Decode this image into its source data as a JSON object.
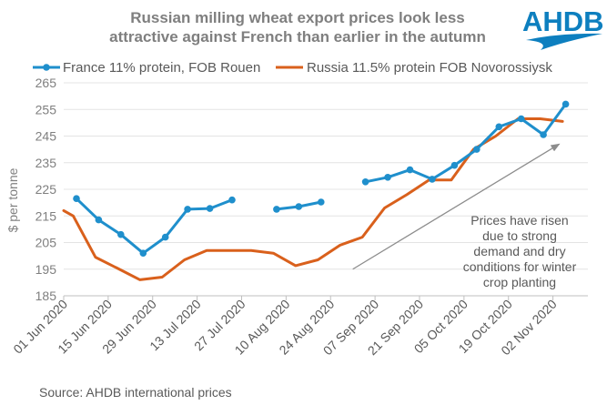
{
  "colors": {
    "france": "#1f8fcc",
    "russia": "#d9601c",
    "logo": "#0d7fbf",
    "title": "#7f7f7f",
    "arrow": "#8c8c8c"
  },
  "logo": {
    "text": "AHDB"
  },
  "source": "Source: AHDB international prices",
  "chart_data": {
    "type": "line",
    "title_lines": [
      "Russian milling wheat export prices look less",
      "attractive against French than earlier in the autumn"
    ],
    "ylabel": "$ per tonne",
    "xlabel": "",
    "ylim": [
      185,
      265
    ],
    "yticks": [
      185,
      195,
      205,
      215,
      225,
      235,
      245,
      255,
      265
    ],
    "xrange": [
      "2020-06-01",
      "2020-11-13"
    ],
    "xticks": [
      {
        "date": "2020-06-01",
        "label": "01 Jun 2020"
      },
      {
        "date": "2020-06-15",
        "label": "15 Jun 2020"
      },
      {
        "date": "2020-06-29",
        "label": "29 Jun 2020"
      },
      {
        "date": "2020-07-13",
        "label": "13 Jul 2020"
      },
      {
        "date": "2020-07-27",
        "label": "27 Jul 2020"
      },
      {
        "date": "2020-08-10",
        "label": "10 Aug 2020"
      },
      {
        "date": "2020-08-24",
        "label": "24 Aug 2020"
      },
      {
        "date": "2020-09-07",
        "label": "07 Sep 2020"
      },
      {
        "date": "2020-09-21",
        "label": "21 Sep 2020"
      },
      {
        "date": "2020-10-05",
        "label": "05 Oct 2020"
      },
      {
        "date": "2020-10-19",
        "label": "19 Oct 2020"
      },
      {
        "date": "2020-11-02",
        "label": "02 Nov 2020"
      }
    ],
    "legend_position": "top",
    "series": [
      {
        "name": "France 11% protein, FOB Rouen",
        "color_key": "france",
        "markers": true,
        "segments": [
          [
            {
              "date": "2020-06-05",
              "value": 221.5
            },
            {
              "date": "2020-06-12",
              "value": 213.5
            },
            {
              "date": "2020-06-19",
              "value": 208
            },
            {
              "date": "2020-06-26",
              "value": 201
            },
            {
              "date": "2020-07-03",
              "value": 207
            },
            {
              "date": "2020-07-10",
              "value": 217.5
            },
            {
              "date": "2020-07-17",
              "value": 217.8
            },
            {
              "date": "2020-07-24",
              "value": 221
            }
          ],
          [
            {
              "date": "2020-08-07",
              "value": 217.5
            },
            {
              "date": "2020-08-14",
              "value": 218.5
            },
            {
              "date": "2020-08-21",
              "value": 220.2
            }
          ],
          [
            {
              "date": "2020-09-04",
              "value": 227.8
            },
            {
              "date": "2020-09-11",
              "value": 229.5
            },
            {
              "date": "2020-09-18",
              "value": 232.3
            },
            {
              "date": "2020-09-25",
              "value": 228.8
            },
            {
              "date": "2020-10-02",
              "value": 234
            },
            {
              "date": "2020-10-09",
              "value": 240
            },
            {
              "date": "2020-10-16",
              "value": 248.5
            },
            {
              "date": "2020-10-23",
              "value": 251.5
            },
            {
              "date": "2020-10-30",
              "value": 245.5
            },
            {
              "date": "2020-11-06",
              "value": 257
            }
          ]
        ]
      },
      {
        "name": "Russia 11.5% protein FOB Novorossiysk",
        "color_key": "russia",
        "markers": false,
        "segments": [
          [
            {
              "date": "2020-06-01",
              "value": 217
            },
            {
              "date": "2020-06-04",
              "value": 215
            },
            {
              "date": "2020-06-11",
              "value": 199.5
            },
            {
              "date": "2020-06-18",
              "value": 195.3
            },
            {
              "date": "2020-06-25",
              "value": 191
            },
            {
              "date": "2020-07-02",
              "value": 192
            },
            {
              "date": "2020-07-09",
              "value": 198.5
            },
            {
              "date": "2020-07-16",
              "value": 202
            },
            {
              "date": "2020-07-23",
              "value": 202
            },
            {
              "date": "2020-07-30",
              "value": 202
            },
            {
              "date": "2020-08-06",
              "value": 201
            },
            {
              "date": "2020-08-13",
              "value": 196.3
            },
            {
              "date": "2020-08-20",
              "value": 198.5
            },
            {
              "date": "2020-08-27",
              "value": 204
            },
            {
              "date": "2020-09-03",
              "value": 207
            },
            {
              "date": "2020-09-10",
              "value": 218
            },
            {
              "date": "2020-09-17",
              "value": 223
            },
            {
              "date": "2020-09-24",
              "value": 228.5
            },
            {
              "date": "2020-10-01",
              "value": 228.5
            },
            {
              "date": "2020-10-08",
              "value": 240
            },
            {
              "date": "2020-10-15",
              "value": 245
            },
            {
              "date": "2020-10-22",
              "value": 251.5
            },
            {
              "date": "2020-10-29",
              "value": 251.5
            },
            {
              "date": "2020-11-05",
              "value": 250.5
            }
          ]
        ]
      }
    ],
    "annotation": {
      "lines": [
        "Prices have risen",
        "due to strong",
        "demand and dry",
        "conditions for winter",
        "crop planting"
      ],
      "arrow_from": {
        "date": "2020-08-31",
        "value": 195
      },
      "arrow_to": {
        "date": "2020-11-04",
        "value": 242
      }
    }
  }
}
